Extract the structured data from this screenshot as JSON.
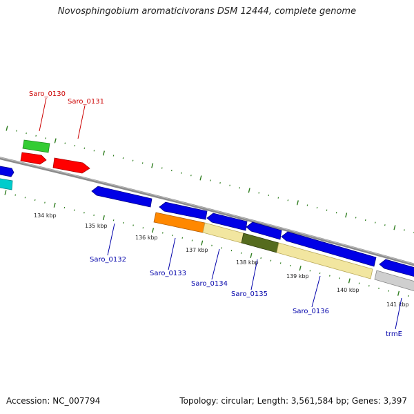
{
  "title": "Novosphingobium aromaticivorans DSM 12444, complete genome",
  "accession": "Accession: NC_007794",
  "topology": "Topology: circular; Length: 3,561,584 bp; Genes: 3,397",
  "colors": {
    "backbone": "#8c8c8c",
    "tick_green": "#2e7d1e",
    "forward_label": "#cc0000",
    "reverse_label": "#0000aa",
    "cds_blue": "#0000e6",
    "cds_red": "#ff0000",
    "cds_green": "#33cc33",
    "cds_cyan": "#00cccc",
    "cds_orange": "#ff8800",
    "cds_yellow": "#f2e6a0",
    "cds_olive": "#556b1e",
    "cds_grey": "#cfcfcf"
  },
  "scale_labels": [
    "134 kbp",
    "135 kbp",
    "136 kbp",
    "137 kbp",
    "138 kbp",
    "139 kbp",
    "140 kbp",
    "141 kbp"
  ],
  "genes": [
    {
      "id": "saro-0130",
      "label": "Saro_0130",
      "strand": "forward"
    },
    {
      "id": "saro-0131",
      "label": "Saro_0131",
      "strand": "forward"
    },
    {
      "id": "saro-0132",
      "label": "Saro_0132",
      "strand": "reverse"
    },
    {
      "id": "saro-0133",
      "label": "Saro_0133",
      "strand": "reverse"
    },
    {
      "id": "saro-0134",
      "label": "Saro_0134",
      "strand": "reverse"
    },
    {
      "id": "saro-0135",
      "label": "Saro_0135",
      "strand": "reverse"
    },
    {
      "id": "saro-0136",
      "label": "Saro_0136",
      "strand": "reverse"
    },
    {
      "id": "trme",
      "label": "trmE",
      "strand": "reverse"
    }
  ]
}
